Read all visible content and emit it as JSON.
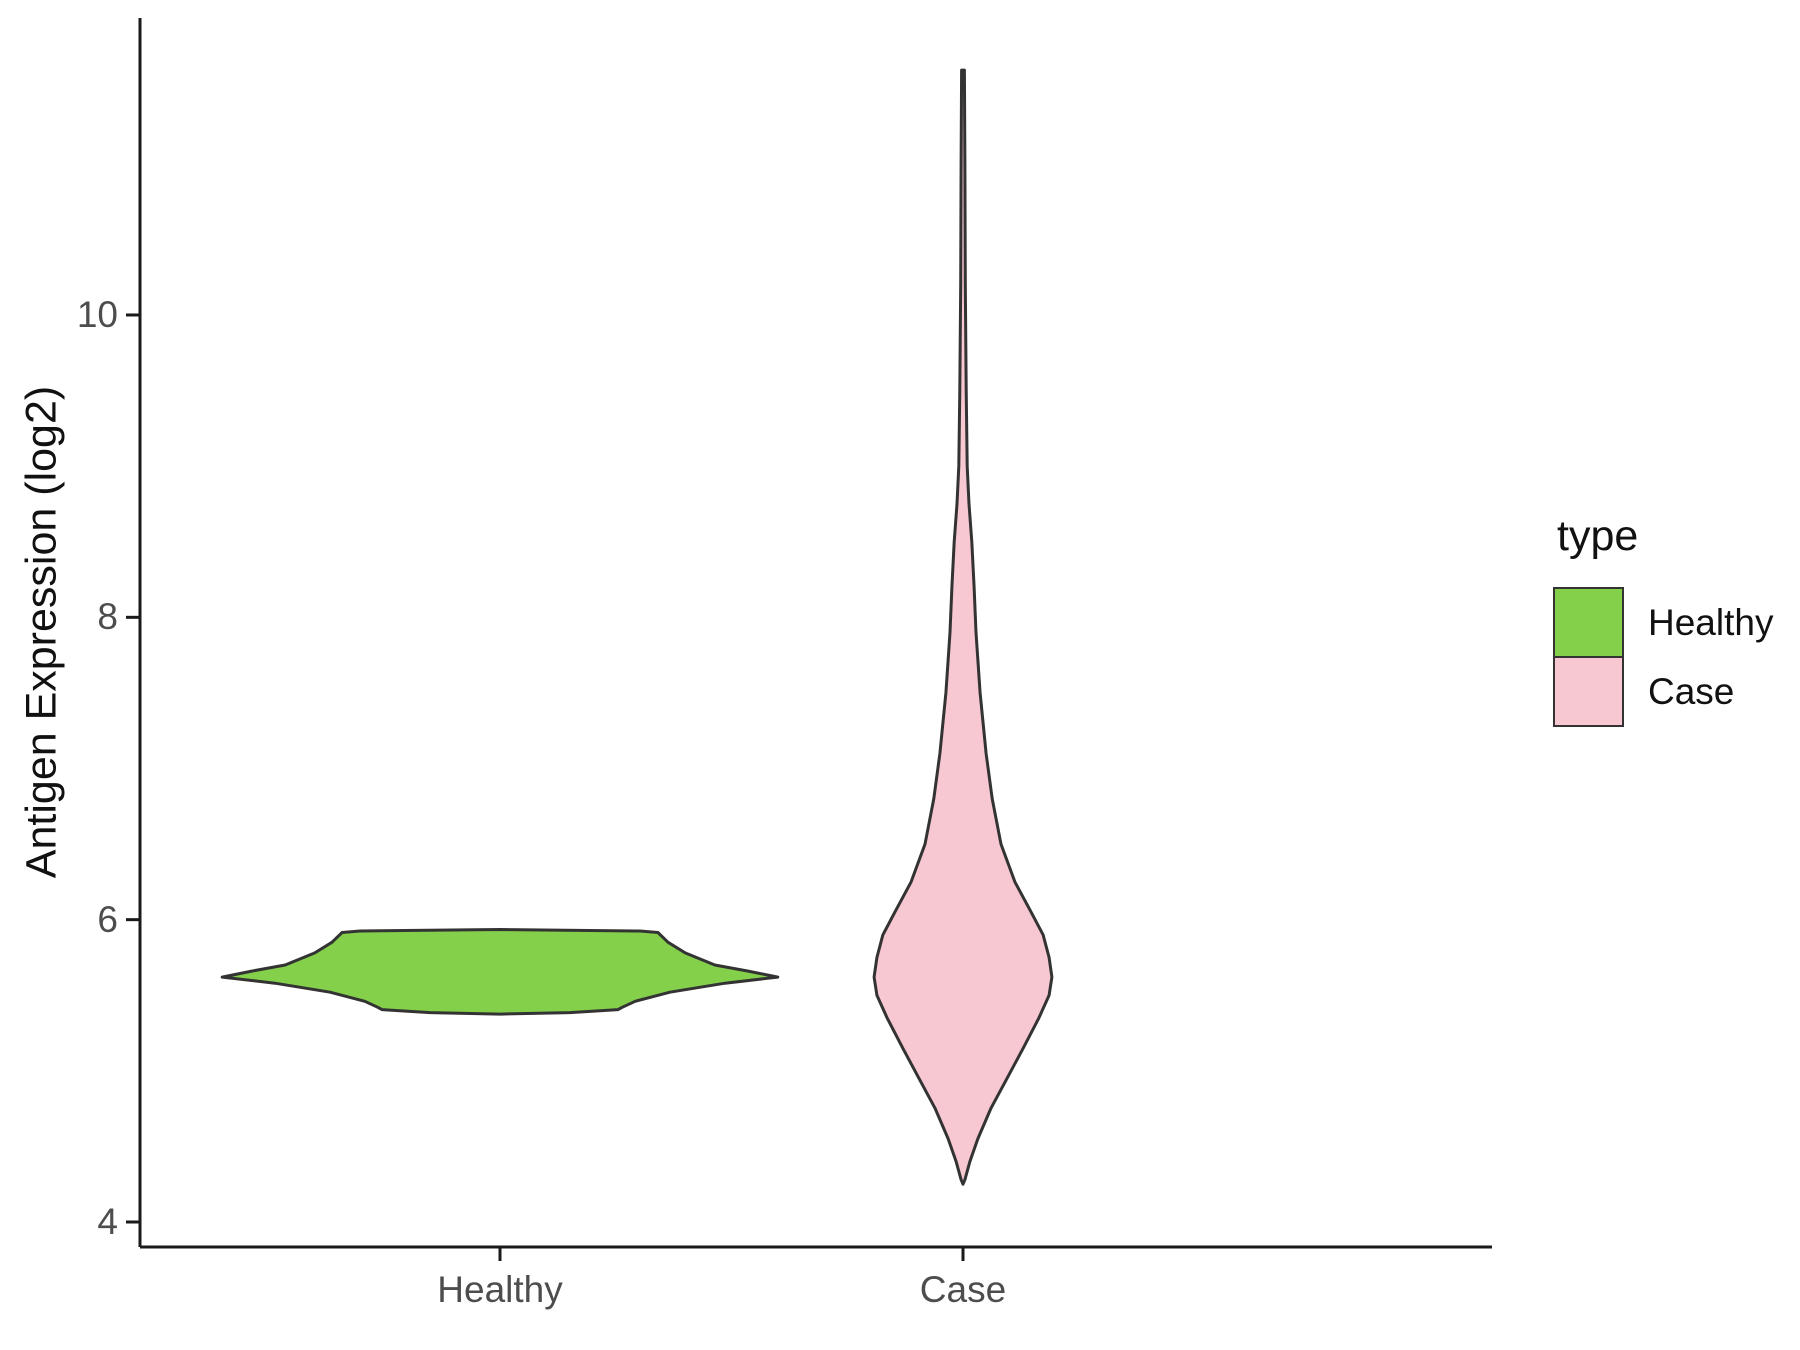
{
  "figure": {
    "background": "#ffffff",
    "axis_color": "#1a1a1a",
    "tick_label_color": "#4d4d4d",
    "y_axis_title": "Antigen Expression (log2)",
    "x_categories": [
      "Healthy",
      "Case"
    ],
    "legend": {
      "title": "type",
      "items": [
        {
          "label": "Healthy",
          "color": "#84D04B"
        },
        {
          "label": "Case",
          "color": "#F8C8D2"
        }
      ]
    }
  },
  "chart_data": {
    "type": "violin",
    "title": "",
    "xlabel": "",
    "ylabel": "Antigen Expression (log2)",
    "categories": [
      "Healthy",
      "Case"
    ],
    "y_axis": {
      "ticks": [
        4,
        6,
        8,
        10
      ],
      "range": [
        3.8,
        12.3
      ]
    },
    "grid": false,
    "legend_position": "right",
    "outline_color": "#333333",
    "series": [
      {
        "name": "Healthy",
        "fill": "#84D04B",
        "summary": {
          "min": 5.37,
          "max": 5.94,
          "mode": 5.62
        },
        "profile": [
          [
            5.935,
            0.0
          ],
          [
            5.925,
            0.302
          ],
          [
            5.915,
            0.341
          ],
          [
            5.85,
            0.363
          ],
          [
            5.78,
            0.4
          ],
          [
            5.7,
            0.464
          ],
          [
            5.66,
            0.536
          ],
          [
            5.62,
            0.6
          ],
          [
            5.58,
            0.486
          ],
          [
            5.52,
            0.367
          ],
          [
            5.46,
            0.292
          ],
          [
            5.42,
            0.264
          ],
          [
            5.405,
            0.255
          ],
          [
            5.385,
            0.151
          ],
          [
            5.375,
            0.0
          ]
        ]
      },
      {
        "name": "Case",
        "fill": "#F8C8D2",
        "summary": {
          "min": 4.25,
          "max": 11.62,
          "mode": 5.62
        },
        "profile": [
          [
            11.62,
            0.003
          ],
          [
            11.0,
            0.004
          ],
          [
            10.2,
            0.005
          ],
          [
            9.5,
            0.007
          ],
          [
            9.0,
            0.009
          ],
          [
            8.75,
            0.013
          ],
          [
            8.5,
            0.019
          ],
          [
            8.2,
            0.024
          ],
          [
            7.9,
            0.028
          ],
          [
            7.5,
            0.037
          ],
          [
            7.1,
            0.05
          ],
          [
            6.8,
            0.063
          ],
          [
            6.5,
            0.082
          ],
          [
            6.25,
            0.112
          ],
          [
            6.05,
            0.147
          ],
          [
            5.9,
            0.173
          ],
          [
            5.75,
            0.186
          ],
          [
            5.62,
            0.192
          ],
          [
            5.5,
            0.186
          ],
          [
            5.35,
            0.164
          ],
          [
            5.15,
            0.13
          ],
          [
            4.95,
            0.095
          ],
          [
            4.75,
            0.06
          ],
          [
            4.55,
            0.032
          ],
          [
            4.4,
            0.015
          ],
          [
            4.28,
            0.004
          ],
          [
            4.25,
            0.0
          ]
        ]
      }
    ]
  }
}
